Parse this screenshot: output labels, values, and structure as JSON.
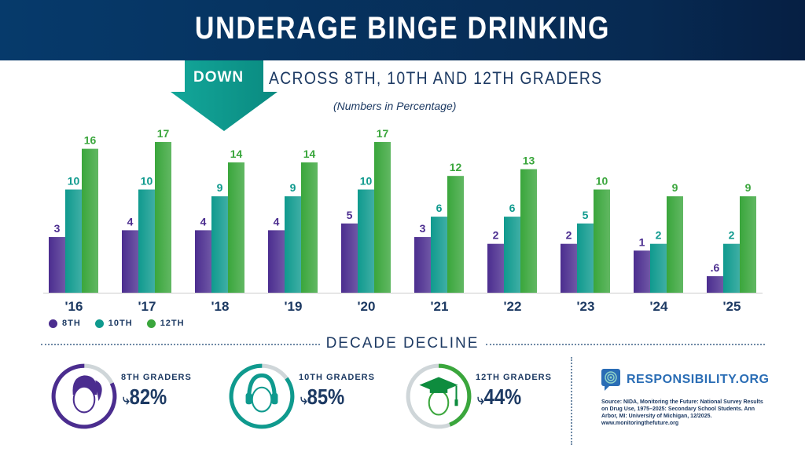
{
  "header": {
    "title": "UNDERAGE BINGE DRINKING",
    "down_label": "DOWN",
    "subtitle": "ACROSS 8TH, 10TH AND 12TH GRADERS",
    "note": "(Numbers in Percentage)"
  },
  "chart_data": {
    "type": "bar",
    "title": "UNDERAGE BINGE DRINKING",
    "categories": [
      "'16",
      "'17",
      "'18",
      "'19",
      "'20",
      "'21",
      "'22",
      "'23",
      "'24",
      "'25"
    ],
    "series": [
      {
        "name": "8TH",
        "color": "#4b2d8f",
        "values": [
          3,
          4,
          4,
          4,
          5,
          3,
          2,
          2,
          1,
          0.6
        ],
        "labels": [
          "3",
          "4",
          "4",
          "4",
          "5",
          "3",
          "2",
          "2",
          "1",
          ".6"
        ]
      },
      {
        "name": "10TH",
        "color": "#0f9a8e",
        "values": [
          10,
          10,
          9,
          9,
          10,
          6,
          6,
          5,
          2,
          2
        ],
        "labels": [
          "10",
          "10",
          "9",
          "9",
          "10",
          "6",
          "6",
          "5",
          "2",
          "2"
        ]
      },
      {
        "name": "12TH",
        "color": "#3aa63c",
        "values": [
          16,
          17,
          14,
          14,
          17,
          12,
          13,
          10,
          9,
          9
        ],
        "labels": [
          "16",
          "17",
          "14",
          "14",
          "17",
          "12",
          "13",
          "10",
          "9",
          "9"
        ]
      }
    ],
    "legend": "bottom-left",
    "grid": false
  },
  "decline": {
    "title": "DECADE DECLINE",
    "items": [
      {
        "label": "8TH GRADERS",
        "value": "82%",
        "percent": 82,
        "color": "#4b2d8f",
        "icon": "girl-face-icon"
      },
      {
        "label": "10TH GRADERS",
        "value": "85%",
        "percent": 85,
        "color": "#0f9a8e",
        "icon": "headphones-face-icon"
      },
      {
        "label": "12TH GRADERS",
        "value": "44%",
        "percent": 44,
        "color": "#3aa63c",
        "icon": "graduate-face-icon"
      }
    ]
  },
  "footer": {
    "logo": "RESPONSIBILITY.ORG",
    "source": "Source: NIDA, Monitoring the Future: National Survey Results on Drug Use, 1975–2025: Secondary School Students. Ann Arbor, MI: University of Michigan, 12/2025. www.monitoringthefuture.org"
  }
}
